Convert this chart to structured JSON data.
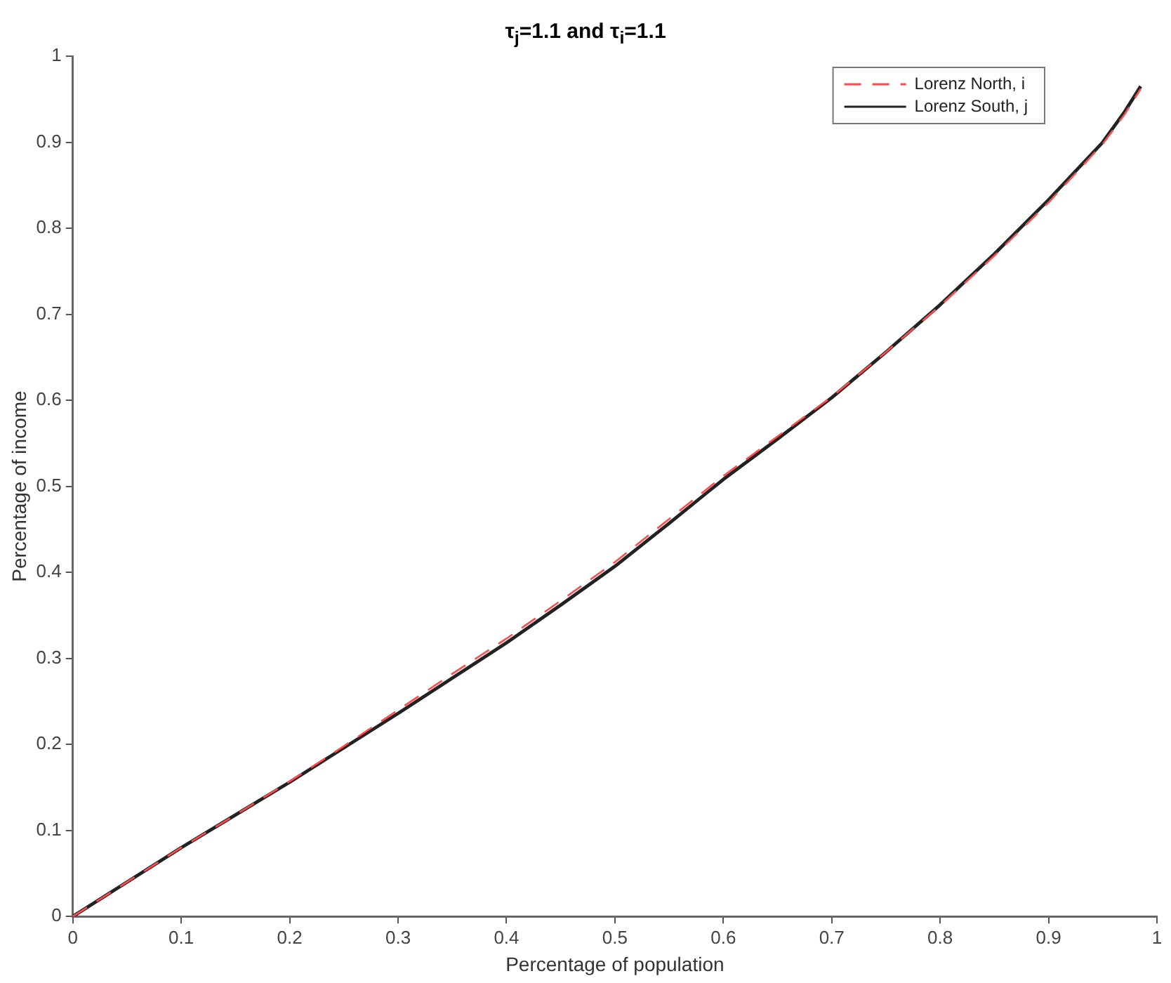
{
  "chart_data": {
    "type": "line",
    "title": "τ$_{j}$=1.1 and τ$_{i}$=1.1",
    "xlabel": "Percentage of population",
    "ylabel": "Percentage of income",
    "x": [
      0,
      0.05,
      0.1,
      0.15,
      0.2,
      0.25,
      0.3,
      0.35,
      0.4,
      0.45,
      0.5,
      0.55,
      0.6,
      0.65,
      0.7,
      0.75,
      0.8,
      0.85,
      0.9,
      0.95,
      0.97,
      0.985
    ],
    "series": [
      {
        "name": "Lorenz North, i",
        "color": "#ff4d4d",
        "line_style": "dashed",
        "values": [
          0,
          0.04,
          0.08,
          0.118,
          0.157,
          0.198,
          0.24,
          0.282,
          0.323,
          0.367,
          0.412,
          0.462,
          0.512,
          0.558,
          0.604,
          0.656,
          0.71,
          0.768,
          0.83,
          0.898,
          0.932,
          0.962
        ]
      },
      {
        "name": "Lorenz South, j",
        "color": "#222222",
        "line_style": "solid",
        "values": [
          0,
          0.04,
          0.08,
          0.118,
          0.156,
          0.196,
          0.236,
          0.277,
          0.318,
          0.362,
          0.407,
          0.457,
          0.508,
          0.555,
          0.603,
          0.656,
          0.711,
          0.77,
          0.833,
          0.9,
          0.935,
          0.965
        ]
      }
    ],
    "xlim": [
      0,
      1
    ],
    "ylim": [
      0,
      1
    ],
    "xticks": [
      0,
      0.1,
      0.2,
      0.3,
      0.4,
      0.5,
      0.6,
      0.7,
      0.8,
      0.9,
      1
    ],
    "yticks": [
      0,
      0.1,
      0.2,
      0.3,
      0.4,
      0.5,
      0.6,
      0.7,
      0.8,
      0.9,
      1
    ],
    "grid": false,
    "legend": "top right",
    "marker": "none"
  }
}
